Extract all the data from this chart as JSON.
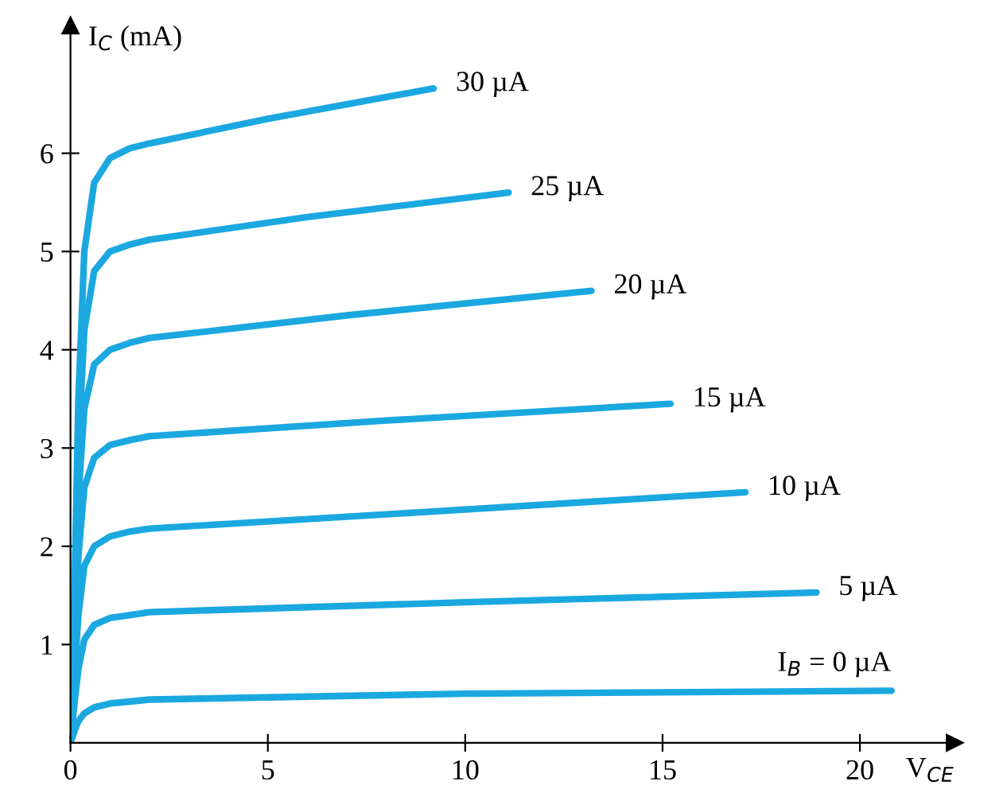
{
  "chart_data": {
    "type": "line",
    "xlabel": "V$_{CE}$",
    "ylabel": "I$_{C}$ (mA)",
    "xlim": [
      0,
      22.4
    ],
    "ylim": [
      0,
      7.3
    ],
    "xticks": [
      0,
      5,
      10,
      15,
      20
    ],
    "yticks": [
      1,
      2,
      3,
      4,
      5,
      6
    ],
    "grid": false,
    "legend": false,
    "marker": "none",
    "line_style": "solid",
    "series": [
      {
        "name": "30 µA",
        "color": "#1ba8e0",
        "x": [
          0,
          0.1,
          0.2,
          0.35,
          0.6,
          1,
          1.5,
          2,
          5,
          9.2
        ],
        "values": [
          0,
          1.5,
          3.5,
          5.0,
          5.7,
          5.95,
          6.05,
          6.1,
          6.35,
          6.66
        ]
      },
      {
        "name": "25 µA",
        "color": "#1ba8e0",
        "x": [
          0,
          0.1,
          0.2,
          0.35,
          0.6,
          1,
          1.5,
          2,
          6,
          11.1
        ],
        "values": [
          0,
          1.3,
          3.0,
          4.2,
          4.8,
          5.0,
          5.07,
          5.12,
          5.35,
          5.6
        ]
      },
      {
        "name": "20 µA",
        "color": "#1ba8e0",
        "x": [
          0,
          0.1,
          0.2,
          0.35,
          0.6,
          1,
          1.5,
          2,
          7,
          13.2
        ],
        "values": [
          0,
          1.1,
          2.5,
          3.4,
          3.85,
          4.0,
          4.07,
          4.12,
          4.35,
          4.6
        ]
      },
      {
        "name": "15 µA",
        "color": "#1ba8e0",
        "x": [
          0,
          0.1,
          0.2,
          0.35,
          0.6,
          1,
          1.5,
          2,
          8,
          15.2
        ],
        "values": [
          0,
          0.9,
          1.9,
          2.6,
          2.9,
          3.03,
          3.08,
          3.12,
          3.28,
          3.45
        ]
      },
      {
        "name": "10 µA",
        "color": "#1ba8e0",
        "x": [
          0,
          0.1,
          0.2,
          0.35,
          0.6,
          1,
          1.5,
          2,
          9,
          17.1
        ],
        "values": [
          0,
          0.7,
          1.3,
          1.8,
          2.0,
          2.1,
          2.15,
          2.18,
          2.35,
          2.55
        ]
      },
      {
        "name": "5 µA",
        "color": "#1ba8e0",
        "x": [
          0,
          0.1,
          0.2,
          0.35,
          0.6,
          1,
          1.5,
          2,
          10,
          18.9
        ],
        "values": [
          0,
          0.4,
          0.75,
          1.05,
          1.2,
          1.27,
          1.3,
          1.33,
          1.43,
          1.53
        ]
      },
      {
        "name": "I$_{B}$ = 0 µA",
        "color": "#1ba8e0",
        "x": [
          0,
          0.1,
          0.2,
          0.35,
          0.6,
          1,
          1.5,
          2,
          10,
          20.8
        ],
        "values": [
          0,
          0.12,
          0.22,
          0.3,
          0.36,
          0.4,
          0.42,
          0.44,
          0.5,
          0.53
        ]
      }
    ]
  }
}
